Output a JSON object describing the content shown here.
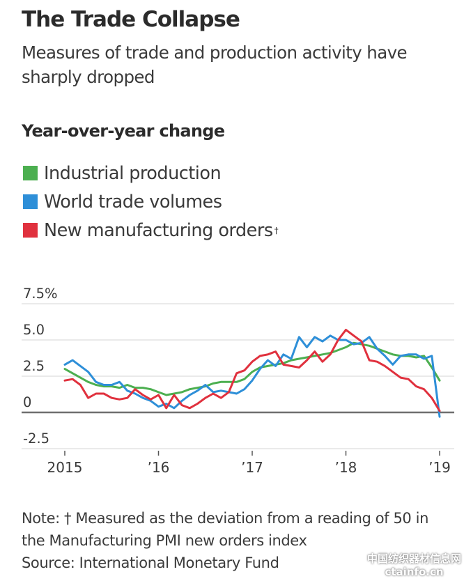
{
  "header": {
    "title": "The Trade Collapse",
    "subtitle": "Measures of trade and production activity have sharply dropped"
  },
  "chart_section": {
    "heading": "Year-over-year change"
  },
  "legend": [
    {
      "label": "Industrial production",
      "color": "#4caf50",
      "marker": ""
    },
    {
      "label": "World trade volumes",
      "color": "#2e8fd8",
      "marker": ""
    },
    {
      "label": "New manufacturing orders",
      "color": "#e0313e",
      "marker": "†"
    }
  ],
  "footer": {
    "note": "Note: † Measured as the deviation from a reading of 50 in the Manufacturing PMI new orders index",
    "source": "Source: International Monetary Fund"
  },
  "watermark": {
    "line1": "中国纺织器材信息网",
    "line2": "ctainfo.cn"
  },
  "chart_data": {
    "type": "line",
    "title": "Year-over-year change",
    "xlabel": "",
    "ylabel": "",
    "ylim": [
      -2.5,
      7.5
    ],
    "yticks": [
      {
        "value": 7.5,
        "label": "7.5%"
      },
      {
        "value": 5.0,
        "label": "5.0"
      },
      {
        "value": 2.5,
        "label": "2.5"
      },
      {
        "value": 0,
        "label": "0"
      },
      {
        "value": -2.5,
        "label": "-2.5"
      }
    ],
    "xlim": [
      2015.0,
      2019.083
    ],
    "xticks": [
      {
        "value": 2015,
        "label": "2015"
      },
      {
        "value": 2016,
        "label": "’16"
      },
      {
        "value": 2017,
        "label": "’17"
      },
      {
        "value": 2018,
        "label": "’18"
      },
      {
        "value": 2019,
        "label": "’19"
      }
    ],
    "grid": true,
    "legend_position": "top-left",
    "x_start": 2015.0,
    "x_step_months": 1,
    "series": [
      {
        "name": "Industrial production",
        "color": "#4caf50",
        "values": [
          3.0,
          2.7,
          2.4,
          2.1,
          1.9,
          1.8,
          1.8,
          1.7,
          1.9,
          1.7,
          1.7,
          1.6,
          1.4,
          1.2,
          1.3,
          1.4,
          1.6,
          1.7,
          1.8,
          2.0,
          2.1,
          2.1,
          2.1,
          2.3,
          2.8,
          3.1,
          3.2,
          3.3,
          3.4,
          3.6,
          3.7,
          3.8,
          3.9,
          4.0,
          4.1,
          4.3,
          4.5,
          4.8,
          4.7,
          4.6,
          4.4,
          4.2,
          4.0,
          3.9,
          3.9,
          3.8,
          3.9,
          3.1,
          2.2
        ]
      },
      {
        "name": "World trade volumes",
        "color": "#2e8fd8",
        "values": [
          3.3,
          3.6,
          3.2,
          2.8,
          2.1,
          1.9,
          1.9,
          2.1,
          1.5,
          1.3,
          1.0,
          0.8,
          0.4,
          0.6,
          0.3,
          0.8,
          1.2,
          1.5,
          1.9,
          1.4,
          1.5,
          1.4,
          1.3,
          1.6,
          2.2,
          3.0,
          3.6,
          3.2,
          4.0,
          3.7,
          5.2,
          4.5,
          5.2,
          4.9,
          5.3,
          5.0,
          5.0,
          4.7,
          4.8,
          5.2,
          4.4,
          3.9,
          3.3,
          3.9,
          4.0,
          4.0,
          3.7,
          3.9,
          -0.3
        ]
      },
      {
        "name": "New manufacturing orders",
        "color": "#e0313e",
        "values": [
          2.2,
          2.3,
          1.9,
          1.0,
          1.3,
          1.3,
          1.0,
          0.9,
          1.0,
          1.6,
          1.2,
          0.9,
          1.2,
          0.3,
          1.2,
          0.5,
          0.3,
          0.6,
          1.0,
          1.3,
          1.0,
          1.4,
          2.7,
          2.9,
          3.5,
          3.9,
          4.0,
          4.2,
          3.3,
          3.2,
          3.1,
          3.6,
          4.2,
          3.5,
          4.0,
          5.0,
          5.7,
          5.3,
          4.9,
          3.6,
          3.5,
          3.2,
          2.8,
          2.4,
          2.3,
          1.8,
          1.6,
          1.0,
          0.1
        ]
      }
    ]
  }
}
